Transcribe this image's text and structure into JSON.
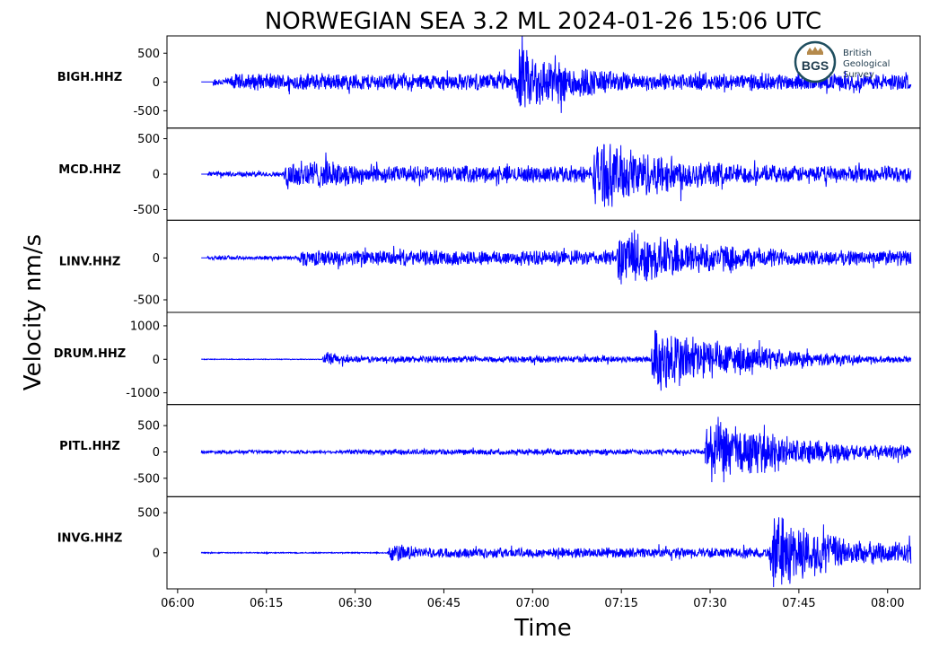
{
  "chart_data": {
    "type": "line",
    "title": "NORWEGIAN SEA 3.2 ML   2024-01-26 15:06 UTC",
    "xlabel": "Time",
    "ylabel": "Velocity nm/s",
    "x_ticks": [
      "06:00",
      "06:15",
      "06:30",
      "06:45",
      "07:00",
      "07:15",
      "07:30",
      "07:45",
      "08:00"
    ],
    "x_tick_minutes": [
      0,
      15,
      30,
      45,
      60,
      75,
      90,
      105,
      120
    ],
    "xlim_minutes": [
      -1.8,
      125.5
    ],
    "trace_start": "06:04",
    "trace_end": "08:04",
    "line_color": "#0000ff",
    "logo": {
      "abbr": "BGS",
      "lines": [
        "British",
        "Geological",
        "Survey"
      ]
    },
    "series": [
      {
        "name": "BIGH.HHZ",
        "ylim": [
          -800,
          800
        ],
        "y_ticks": [
          500,
          0,
          -500
        ],
        "y_tick_labels": [
          "500",
          "0",
          "-500"
        ],
        "onsets": [
          {
            "t": 6,
            "amp": 80,
            "decay": 0
          },
          {
            "t": 9,
            "amp": 160,
            "decay": 0
          },
          {
            "t": 57,
            "amp": 700,
            "decay": 3.5
          }
        ]
      },
      {
        "name": "MCD.HHZ",
        "ylim": [
          -650,
          650
        ],
        "y_ticks": [
          500,
          0,
          -500
        ],
        "y_tick_labels": [
          "500",
          "0",
          "-500"
        ],
        "onsets": [
          {
            "t": 5,
            "amp": 40,
            "decay": 0
          },
          {
            "t": 18,
            "amp": 280,
            "decay": 6
          },
          {
            "t": 18,
            "amp": 130,
            "decay": 0
          },
          {
            "t": 70,
            "amp": 560,
            "decay": 5
          }
        ]
      },
      {
        "name": "LINV.HHZ",
        "ylim": [
          -650,
          450
        ],
        "y_ticks": [
          0,
          -500
        ],
        "y_tick_labels": [
          "0",
          "-500"
        ],
        "onsets": [
          {
            "t": 5,
            "amp": 25,
            "decay": 0
          },
          {
            "t": 20.5,
            "amp": 100,
            "decay": 0
          },
          {
            "t": 20.5,
            "amp": 130,
            "decay": 3
          },
          {
            "t": 74,
            "amp": 380,
            "decay": 6
          }
        ]
      },
      {
        "name": "DRUM.HHZ",
        "ylim": [
          -1350,
          1400
        ],
        "y_ticks": [
          1000,
          0,
          -1000
        ],
        "y_tick_labels": [
          "1000",
          "0",
          "-1000"
        ],
        "onsets": [
          {
            "t": 4,
            "amp": 12,
            "decay": 0
          },
          {
            "t": 24.5,
            "amp": 360,
            "decay": 1
          },
          {
            "t": 24.5,
            "amp": 110,
            "decay": 0
          },
          {
            "t": 80,
            "amp": 1250,
            "decay": 4
          }
        ]
      },
      {
        "name": "PITL.HHZ",
        "ylim": [
          -850,
          900
        ],
        "y_ticks": [
          500,
          0,
          -500
        ],
        "y_tick_labels": [
          "500",
          "0",
          "-500"
        ],
        "onsets": [
          {
            "t": 4,
            "amp": 35,
            "decay": 0
          },
          {
            "t": 29,
            "amp": 60,
            "decay": 0
          },
          {
            "t": 89,
            "amp": 780,
            "decay": 4
          },
          {
            "t": 89,
            "amp": 150,
            "decay": 0
          }
        ]
      },
      {
        "name": "INVG.HHZ",
        "ylim": [
          -450,
          700
        ],
        "y_ticks": [
          500,
          0
        ],
        "y_tick_labels": [
          "500",
          "0"
        ],
        "onsets": [
          {
            "t": 4,
            "amp": 8,
            "decay": 0
          },
          {
            "t": 35.5,
            "amp": 180,
            "decay": 1.5
          },
          {
            "t": 35.5,
            "amp": 70,
            "decay": 0
          },
          {
            "t": 100,
            "amp": 600,
            "decay": 3
          },
          {
            "t": 100,
            "amp": 150,
            "decay": 0
          }
        ]
      }
    ]
  }
}
